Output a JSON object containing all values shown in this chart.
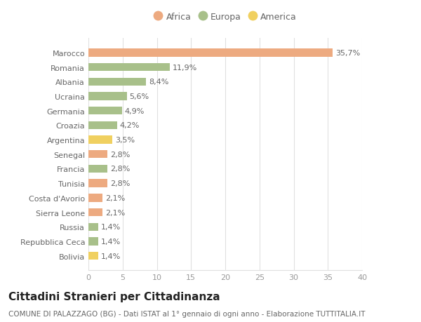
{
  "categories": [
    "Marocco",
    "Romania",
    "Albania",
    "Ucraina",
    "Germania",
    "Croazia",
    "Argentina",
    "Senegal",
    "Francia",
    "Tunisia",
    "Costa d'Avorio",
    "Sierra Leone",
    "Russia",
    "Repubblica Ceca",
    "Bolivia"
  ],
  "values": [
    35.7,
    11.9,
    8.4,
    5.6,
    4.9,
    4.2,
    3.5,
    2.8,
    2.8,
    2.8,
    2.1,
    2.1,
    1.4,
    1.4,
    1.4
  ],
  "labels": [
    "35,7%",
    "11,9%",
    "8,4%",
    "5,6%",
    "4,9%",
    "4,2%",
    "3,5%",
    "2,8%",
    "2,8%",
    "2,8%",
    "2,1%",
    "2,1%",
    "1,4%",
    "1,4%",
    "1,4%"
  ],
  "continents": [
    "Africa",
    "Europa",
    "Europa",
    "Europa",
    "Europa",
    "Europa",
    "America",
    "Africa",
    "Europa",
    "Africa",
    "Africa",
    "Africa",
    "Europa",
    "Europa",
    "America"
  ],
  "continent_colors": {
    "Africa": "#EDAA80",
    "Europa": "#A8C08A",
    "America": "#F0D060"
  },
  "legend_items": [
    "Africa",
    "Europa",
    "America"
  ],
  "legend_colors": [
    "#EDAA80",
    "#A8C08A",
    "#F0D060"
  ],
  "xlim": [
    0,
    40
  ],
  "xticks": [
    0,
    5,
    10,
    15,
    20,
    25,
    30,
    35,
    40
  ],
  "title": "Cittadini Stranieri per Cittadinanza",
  "subtitle": "COMUNE DI PALAZZAGO (BG) - Dati ISTAT al 1° gennaio di ogni anno - Elaborazione TUTTITALIA.IT",
  "background_color": "#ffffff",
  "grid_color": "#e0e0e0",
  "bar_height": 0.55,
  "label_fontsize": 8,
  "tick_fontsize": 8,
  "title_fontsize": 11,
  "subtitle_fontsize": 7.5
}
